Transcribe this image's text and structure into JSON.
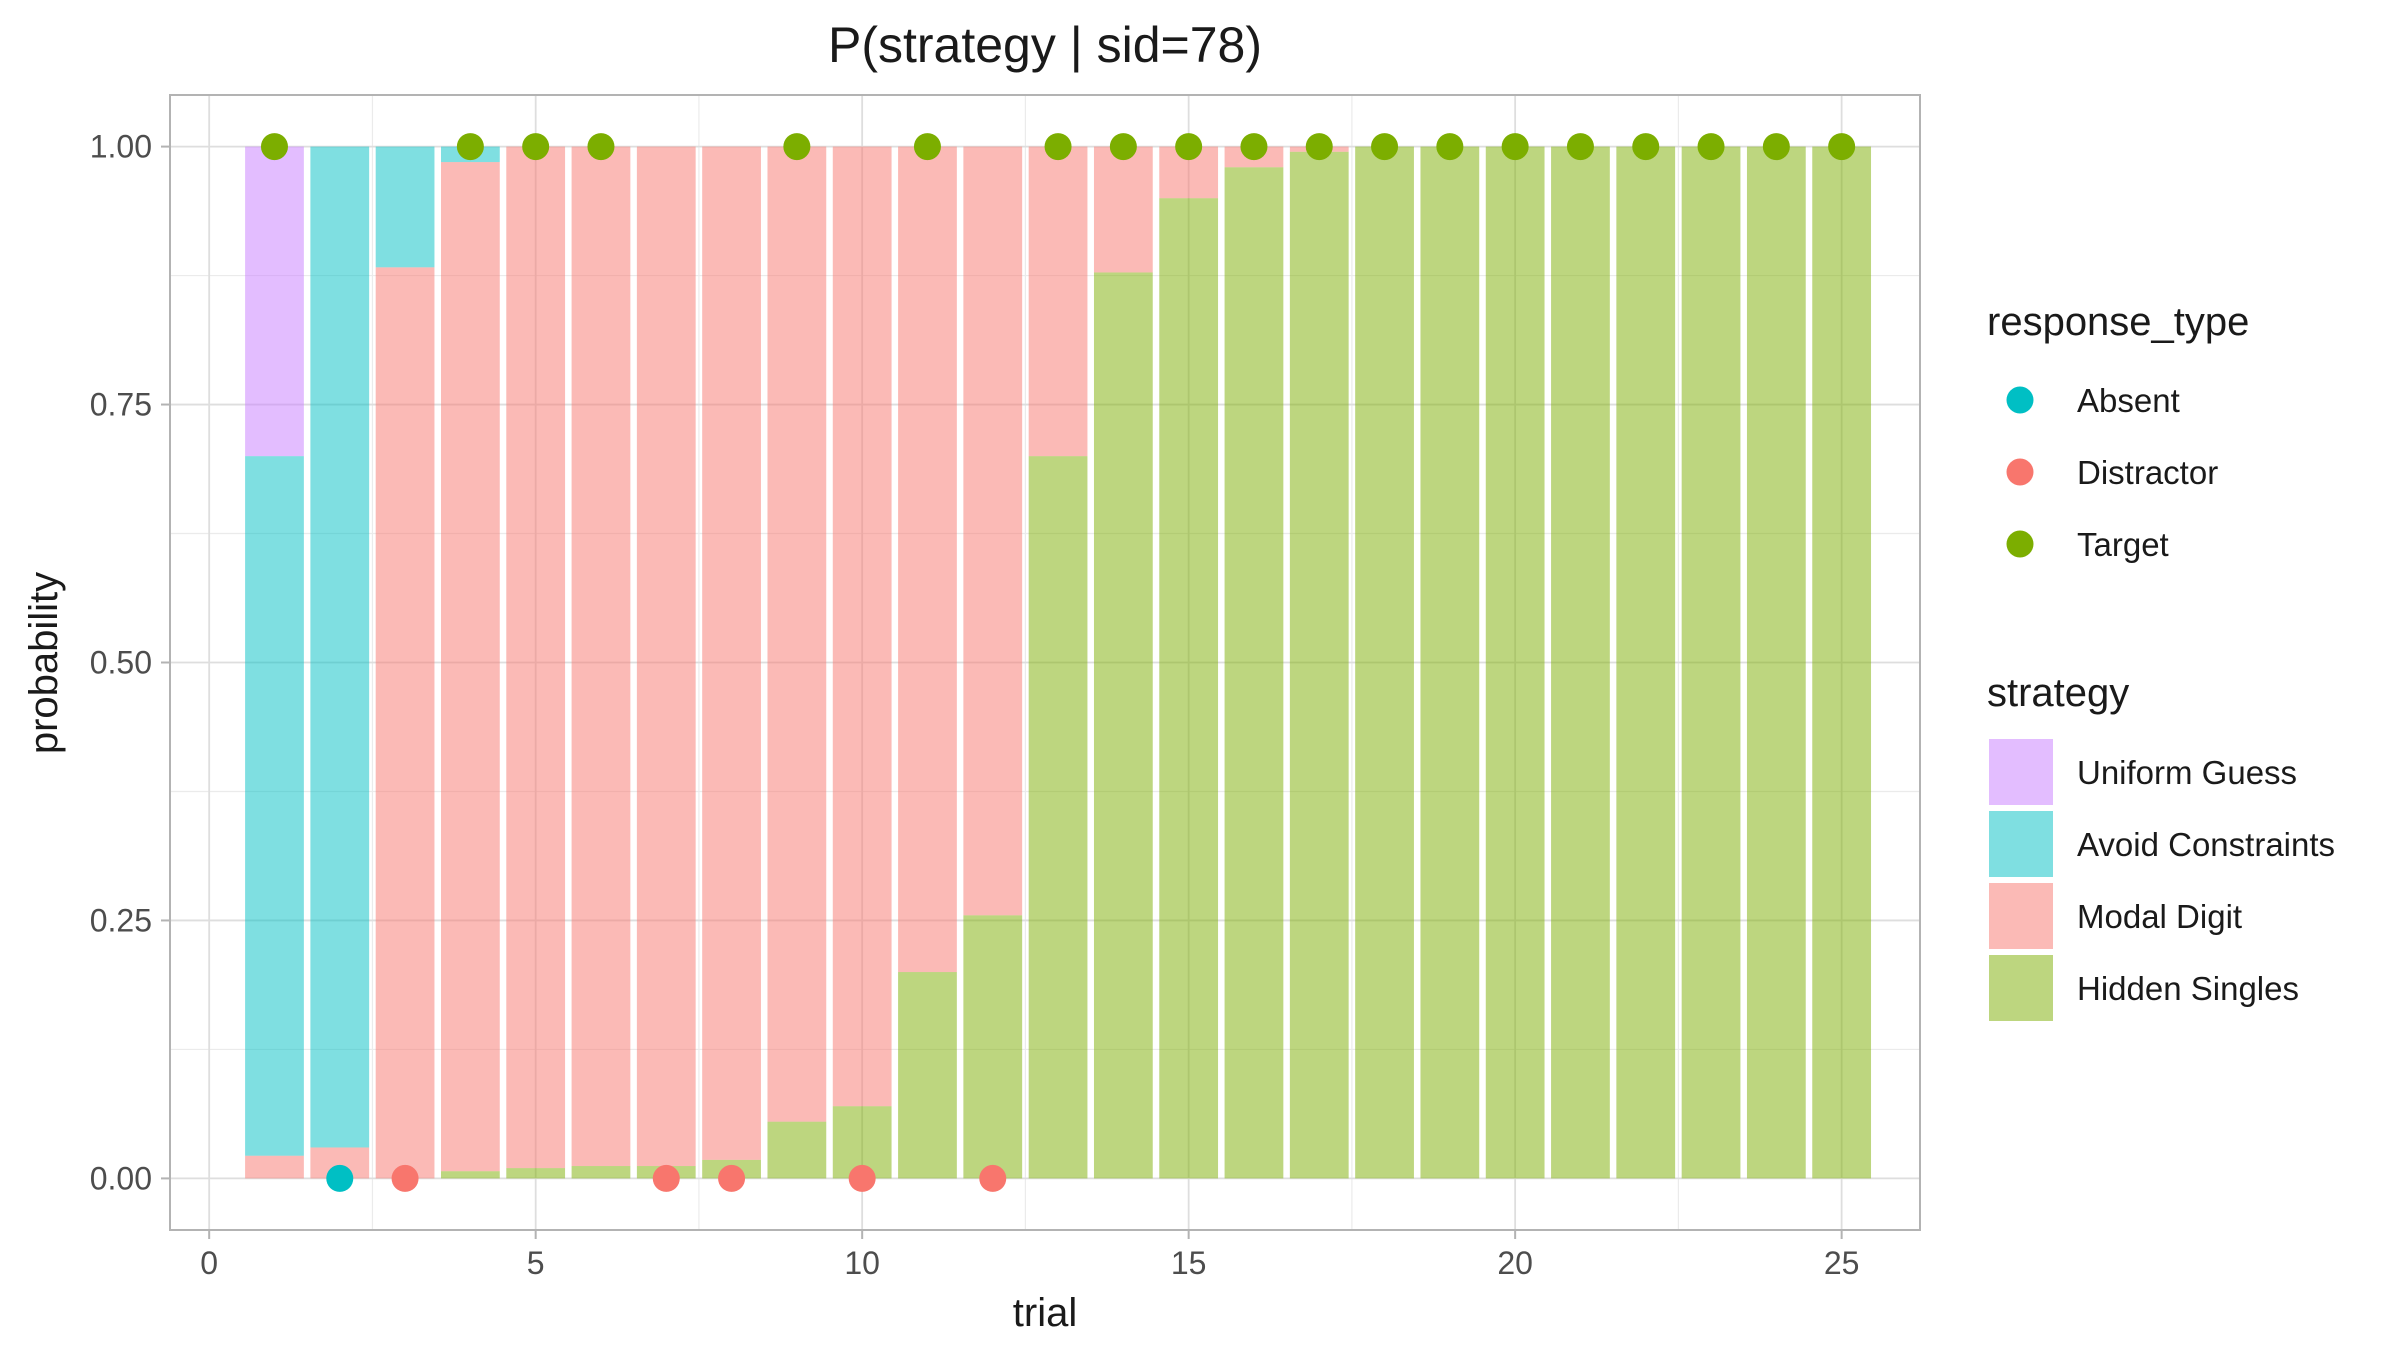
{
  "chart_data": {
    "type": "bar",
    "title": "P(strategy | sid=78)",
    "xlabel": "trial",
    "ylabel": "probability",
    "xlim": [
      -0.6,
      26.2
    ],
    "ylim": [
      -0.05,
      1.05
    ],
    "xticks": [
      0,
      5,
      10,
      15,
      20,
      25
    ],
    "xtick_labels": [
      "0",
      "5",
      "10",
      "15",
      "20",
      "25"
    ],
    "yticks": [
      0,
      0.25,
      0.5,
      0.75,
      1
    ],
    "ytick_labels": [
      "0.00",
      "0.25",
      "0.50",
      "0.75",
      "1.00"
    ],
    "x": [
      1,
      2,
      3,
      4,
      5,
      6,
      7,
      8,
      9,
      10,
      11,
      12,
      13,
      14,
      15,
      16,
      17,
      18,
      19,
      20,
      21,
      22,
      23,
      24,
      25
    ],
    "stacked": true,
    "bar_alpha": 0.5,
    "grid": true,
    "series": [
      {
        "name": "Hidden Singles",
        "color": "#7CAE00",
        "values": [
          0,
          0,
          0,
          0.007,
          0.01,
          0.012,
          0.012,
          0.018,
          0.055,
          0.07,
          0.2,
          0.255,
          0.7,
          0.878,
          0.95,
          0.98,
          0.995,
          1,
          1,
          1,
          1,
          1,
          1,
          1,
          1
        ]
      },
      {
        "name": "Modal Digit",
        "color": "#F8766D",
        "values": [
          0.022,
          0.03,
          0.883,
          0.978,
          0.99,
          0.988,
          0.988,
          0.982,
          0.945,
          0.93,
          0.8,
          0.745,
          0.3,
          0.122,
          0.05,
          0.02,
          0.005,
          0,
          0,
          0,
          0,
          0,
          0,
          0,
          0
        ]
      },
      {
        "name": "Avoid Constraints",
        "color": "#00BFC4",
        "values": [
          0.678,
          0.97,
          0.117,
          0.015,
          0,
          0,
          0,
          0,
          0,
          0,
          0,
          0,
          0,
          0,
          0,
          0,
          0,
          0,
          0,
          0,
          0,
          0,
          0,
          0,
          0
        ]
      },
      {
        "name": "Uniform Guess",
        "color": "#C77CFF",
        "values": [
          0.3,
          0,
          0,
          0,
          0,
          0,
          0,
          0,
          0,
          0,
          0,
          0,
          0,
          0,
          0,
          0,
          0,
          0,
          0,
          0,
          0,
          0,
          0,
          0,
          0
        ]
      }
    ],
    "points": {
      "legend_title": "response_type",
      "categories": [
        {
          "name": "Absent",
          "color": "#00BFC4"
        },
        {
          "name": "Distractor",
          "color": "#F8766D"
        },
        {
          "name": "Target",
          "color": "#7CAE00"
        }
      ],
      "x": [
        1,
        2,
        3,
        4,
        5,
        6,
        7,
        8,
        9,
        10,
        11,
        12,
        13,
        14,
        15,
        16,
        17,
        18,
        19,
        20,
        21,
        22,
        23,
        24,
        25
      ],
      "y": [
        1,
        0,
        0,
        1,
        1,
        1,
        0,
        0,
        1,
        0,
        1,
        0,
        1,
        1,
        1,
        1,
        1,
        1,
        1,
        1,
        1,
        1,
        1,
        1,
        1
      ],
      "type": [
        "Target",
        "Absent",
        "Distractor",
        "Target",
        "Target",
        "Target",
        "Distractor",
        "Distractor",
        "Target",
        "Distractor",
        "Target",
        "Distractor",
        "Target",
        "Target",
        "Target",
        "Target",
        "Target",
        "Target",
        "Target",
        "Target",
        "Target",
        "Target",
        "Target",
        "Target",
        "Target"
      ]
    },
    "legends": [
      {
        "title": "response_type",
        "kind": "point",
        "entries": [
          "Absent",
          "Distractor",
          "Target"
        ]
      },
      {
        "title": "strategy",
        "kind": "fill",
        "entries": [
          "Uniform Guess",
          "Avoid Constraints",
          "Modal Digit",
          "Hidden Singles"
        ]
      }
    ],
    "legend_position": "right"
  }
}
